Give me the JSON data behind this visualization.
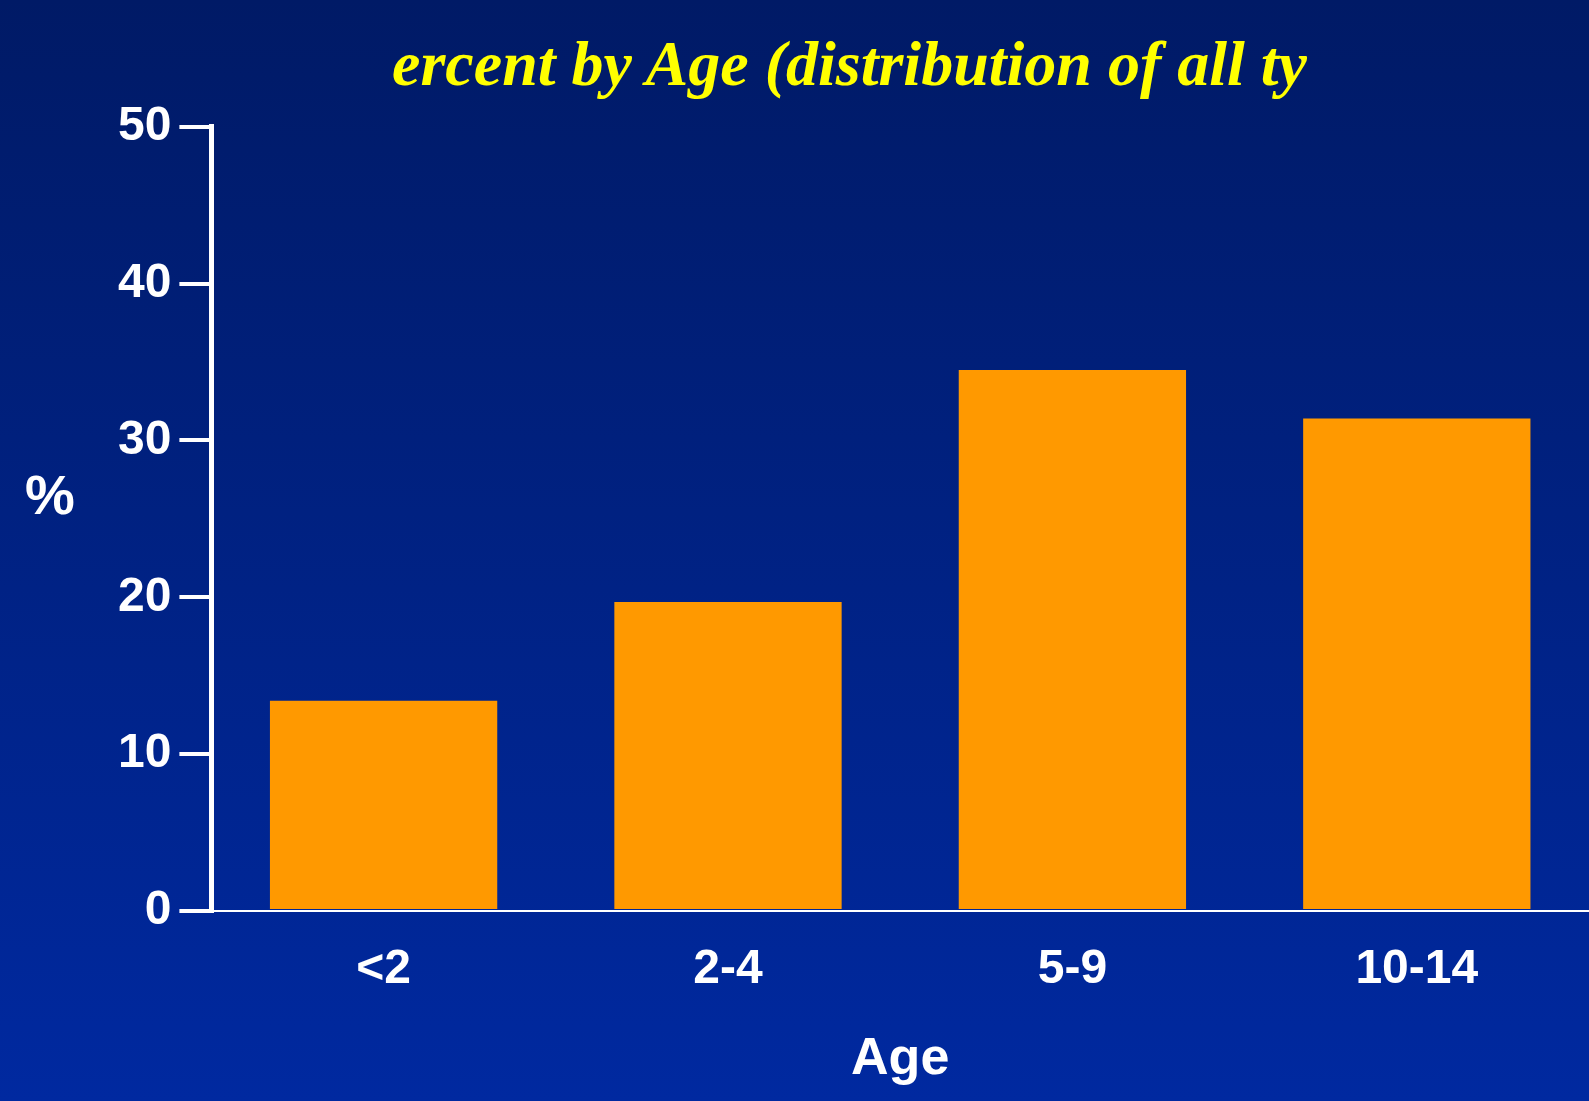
{
  "chart_data": {
    "type": "bar",
    "title": "ercent by Age (distribution of all ty",
    "xlabel": "Age",
    "ylabel": "%",
    "categories": [
      "<2",
      "2-4",
      "5-9",
      "10-14"
    ],
    "values": [
      13.4,
      19.7,
      34.5,
      31.4
    ],
    "color": "#ff9900",
    "ylim": [
      0,
      50
    ],
    "yticks": [
      0,
      10,
      20,
      30,
      40,
      50
    ],
    "grid": false,
    "legend": false
  }
}
